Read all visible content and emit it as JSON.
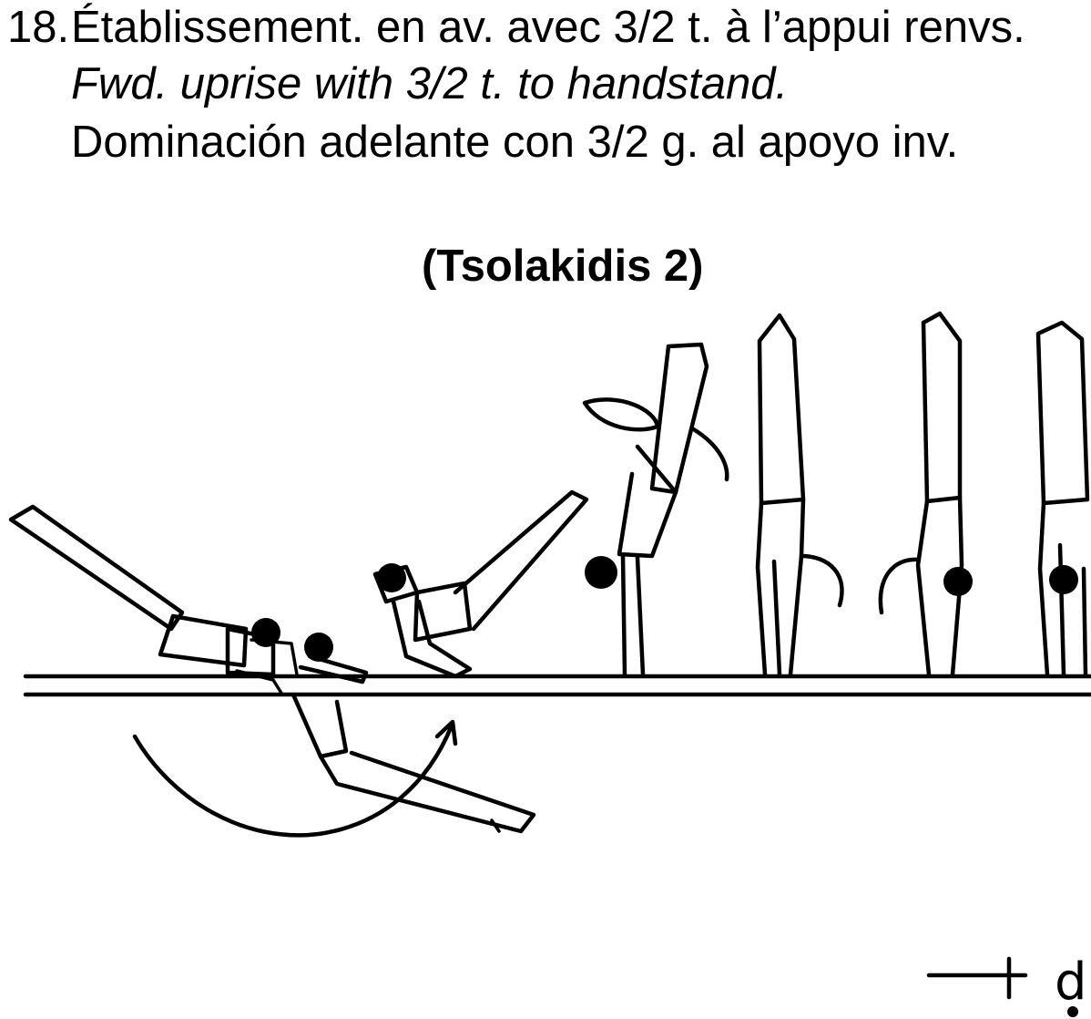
{
  "element": {
    "number": "18.",
    "name_fr": "Établissement. en av. avec 3/2 t. à l’appui renvs.",
    "name_en": "Fwd. uprise with 3/2 t. to handstand.",
    "name_es": "Dominación adelante con 3/2 g. al apoyo inv.",
    "named_after": "(Tsolakidis 2)",
    "value_mark": "d"
  }
}
